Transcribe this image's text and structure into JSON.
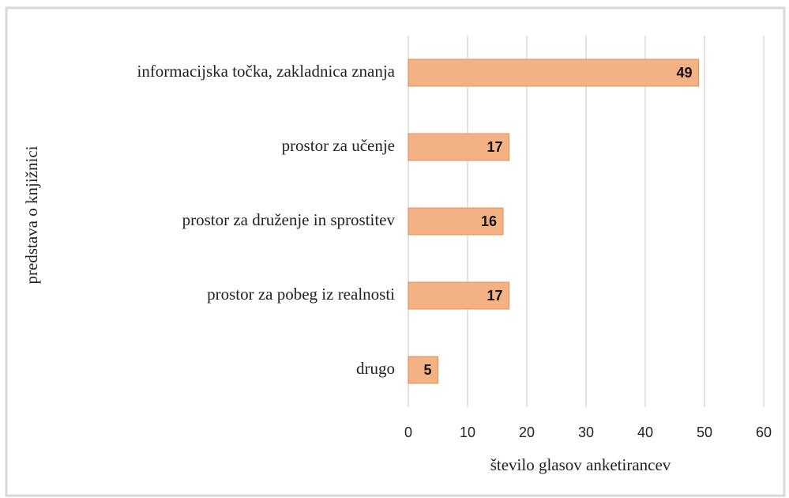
{
  "chart_data": {
    "type": "bar",
    "orientation": "horizontal",
    "categories": [
      "informacijska točka, zakladnica znanja",
      "prostor za učenje",
      "prostor za druženje in sprostitev",
      "prostor za pobeg iz realnosti",
      "drugo"
    ],
    "values": [
      49,
      17,
      16,
      17,
      5
    ],
    "color": "#f4b183",
    "xlim": [
      0,
      60
    ],
    "xticks": [
      0,
      10,
      20,
      30,
      40,
      50,
      60
    ],
    "xlabel": "število glasov anketirancev",
    "ylabel": "predstava o knjižnici",
    "grid": true
  }
}
